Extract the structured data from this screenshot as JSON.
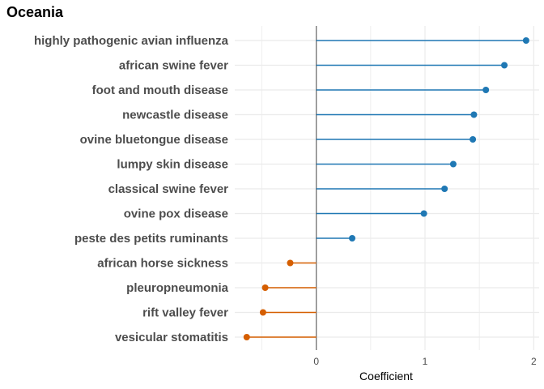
{
  "chart_data": {
    "type": "lollipop",
    "title": "Oceania",
    "xlabel": "Coefficient",
    "ylabel": "",
    "xlim": [
      -0.75,
      2.05
    ],
    "xticks": [
      0,
      1,
      2
    ],
    "grid": true,
    "colors": {
      "positive": "#1f78b4",
      "negative": "#d55e00",
      "zero_line": "#666666",
      "grid": "#ebebeb"
    },
    "categories": [
      "highly pathogenic avian influenza",
      "african swine fever",
      "foot and mouth disease",
      "newcastle disease",
      "ovine bluetongue disease",
      "lumpy skin disease",
      "classical swine fever",
      "ovine pox disease",
      "peste des petits ruminants",
      "african horse sickness",
      "pleuropneumonia",
      "rift valley fever",
      "vesicular stomatitis"
    ],
    "values": [
      1.93,
      1.73,
      1.56,
      1.45,
      1.44,
      1.26,
      1.18,
      0.99,
      0.33,
      -0.24,
      -0.47,
      -0.49,
      -0.64
    ]
  }
}
